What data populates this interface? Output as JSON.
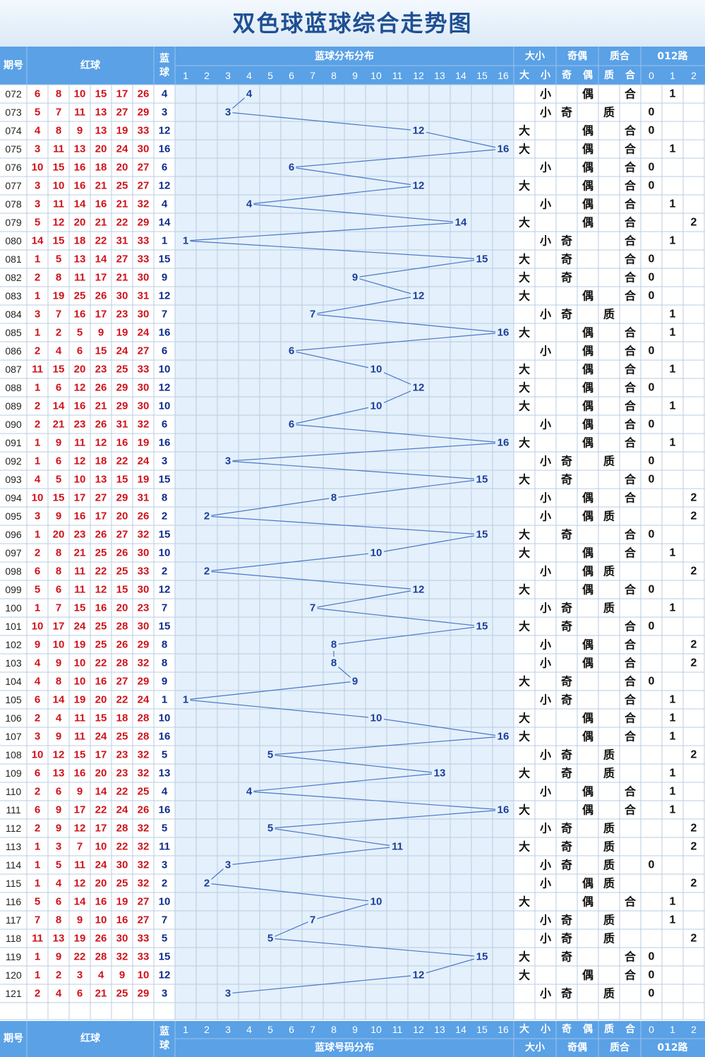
{
  "title": "双色球蓝球综合走势图",
  "headers": {
    "period": "期号",
    "red": "红球",
    "blue": "蓝球",
    "dist_top": "蓝球分布分布",
    "dist_bottom": "蓝球号码分布",
    "bigsmall": "大小",
    "oddeven": "奇偶",
    "primecomp": "质合",
    "route": "012路",
    "numbers": [
      "1",
      "2",
      "3",
      "4",
      "5",
      "6",
      "7",
      "8",
      "9",
      "10",
      "11",
      "12",
      "13",
      "14",
      "15",
      "16"
    ],
    "sub": [
      "大",
      "小",
      "奇",
      "偶",
      "质",
      "合",
      "0",
      "1",
      "2"
    ]
  },
  "colors": {
    "header": "#5aa1e6",
    "red_ball": "#d0121b",
    "blue_ball": "#0d2c8c",
    "trend_line": "#4a78c8",
    "grid": "#b8cde3"
  },
  "chart_data": {
    "type": "line",
    "title": "双色球蓝球综合走势图",
    "x": [
      "072",
      "073",
      "074",
      "075",
      "076",
      "077",
      "078",
      "079",
      "080",
      "081",
      "082",
      "083",
      "084",
      "085",
      "086",
      "087",
      "088",
      "089",
      "090",
      "091",
      "092",
      "093",
      "094",
      "095",
      "096",
      "097",
      "098",
      "099",
      "100",
      "101",
      "102",
      "103",
      "104",
      "105",
      "106",
      "107",
      "108",
      "109",
      "110",
      "111",
      "112",
      "113",
      "114",
      "115",
      "116",
      "117",
      "118",
      "119",
      "120",
      "121"
    ],
    "ylim": [
      1,
      16
    ],
    "series": [
      {
        "name": "蓝球",
        "values": [
          4,
          3,
          12,
          16,
          6,
          12,
          4,
          14,
          1,
          15,
          9,
          12,
          7,
          16,
          6,
          10,
          12,
          10,
          6,
          16,
          3,
          15,
          8,
          2,
          15,
          10,
          2,
          12,
          7,
          15,
          8,
          8,
          9,
          1,
          10,
          16,
          5,
          13,
          4,
          16,
          5,
          11,
          3,
          2,
          10,
          7,
          5,
          15,
          12,
          3
        ]
      }
    ],
    "red_balls": [
      [
        6,
        8,
        10,
        15,
        17,
        26
      ],
      [
        5,
        7,
        11,
        13,
        27,
        29
      ],
      [
        4,
        8,
        9,
        13,
        19,
        33
      ],
      [
        3,
        11,
        13,
        20,
        24,
        30
      ],
      [
        10,
        15,
        16,
        18,
        20,
        27
      ],
      [
        3,
        10,
        16,
        21,
        25,
        27
      ],
      [
        3,
        11,
        14,
        16,
        21,
        32
      ],
      [
        5,
        12,
        20,
        21,
        22,
        29
      ],
      [
        14,
        15,
        18,
        22,
        31,
        33
      ],
      [
        1,
        5,
        13,
        14,
        27,
        33
      ],
      [
        2,
        8,
        11,
        17,
        21,
        30
      ],
      [
        1,
        19,
        25,
        26,
        30,
        31
      ],
      [
        3,
        7,
        16,
        17,
        23,
        30
      ],
      [
        1,
        2,
        5,
        9,
        19,
        24
      ],
      [
        2,
        4,
        6,
        15,
        24,
        27
      ],
      [
        11,
        15,
        20,
        23,
        25,
        33
      ],
      [
        1,
        6,
        12,
        26,
        29,
        30
      ],
      [
        2,
        14,
        16,
        21,
        29,
        30
      ],
      [
        2,
        21,
        23,
        26,
        31,
        32
      ],
      [
        1,
        9,
        11,
        12,
        16,
        19
      ],
      [
        1,
        6,
        12,
        18,
        22,
        24
      ],
      [
        4,
        5,
        10,
        13,
        15,
        19
      ],
      [
        10,
        15,
        17,
        27,
        29,
        31
      ],
      [
        3,
        9,
        16,
        17,
        20,
        26
      ],
      [
        1,
        20,
        23,
        26,
        27,
        32
      ],
      [
        2,
        8,
        21,
        25,
        26,
        30
      ],
      [
        6,
        8,
        11,
        22,
        25,
        33
      ],
      [
        5,
        6,
        11,
        12,
        15,
        30
      ],
      [
        1,
        7,
        15,
        16,
        20,
        23
      ],
      [
        10,
        17,
        24,
        25,
        28,
        30
      ],
      [
        9,
        10,
        19,
        25,
        26,
        29
      ],
      [
        4,
        9,
        10,
        22,
        28,
        32
      ],
      [
        4,
        8,
        10,
        16,
        27,
        29
      ],
      [
        6,
        14,
        19,
        20,
        22,
        24
      ],
      [
        2,
        4,
        11,
        15,
        18,
        28
      ],
      [
        3,
        9,
        11,
        24,
        25,
        28
      ],
      [
        10,
        12,
        15,
        17,
        23,
        32
      ],
      [
        6,
        13,
        16,
        20,
        23,
        32
      ],
      [
        2,
        6,
        9,
        14,
        22,
        25
      ],
      [
        6,
        9,
        17,
        22,
        24,
        26
      ],
      [
        2,
        9,
        12,
        17,
        28,
        32
      ],
      [
        1,
        3,
        7,
        10,
        22,
        32
      ],
      [
        1,
        5,
        11,
        24,
        30,
        32
      ],
      [
        1,
        4,
        12,
        20,
        25,
        32
      ],
      [
        5,
        6,
        14,
        16,
        19,
        27
      ],
      [
        7,
        8,
        9,
        10,
        16,
        27
      ],
      [
        11,
        13,
        19,
        26,
        30,
        33
      ],
      [
        1,
        9,
        22,
        28,
        32,
        33
      ],
      [
        1,
        2,
        3,
        4,
        9,
        10
      ],
      [
        2,
        4,
        6,
        21,
        25,
        29
      ]
    ],
    "attributes": {
      "bigsmall": [
        "小",
        "小",
        "大",
        "大",
        "小",
        "大",
        "小",
        "大",
        "小",
        "大",
        "大",
        "大",
        "小",
        "大",
        "小",
        "大",
        "大",
        "大",
        "小",
        "大",
        "小",
        "大",
        "小",
        "小",
        "大",
        "大",
        "小",
        "大",
        "小",
        "大",
        "小",
        "小",
        "大",
        "小",
        "大",
        "大",
        "小",
        "大",
        "小",
        "大",
        "小",
        "大",
        "小",
        "小",
        "大",
        "小",
        "小",
        "大",
        "大",
        "小"
      ],
      "oddeven": [
        "偶",
        "奇",
        "偶",
        "偶",
        "偶",
        "偶",
        "偶",
        "偶",
        "奇",
        "奇",
        "奇",
        "偶",
        "奇",
        "偶",
        "偶",
        "偶",
        "偶",
        "偶",
        "偶",
        "偶",
        "奇",
        "奇",
        "偶",
        "偶",
        "奇",
        "偶",
        "偶",
        "偶",
        "奇",
        "奇",
        "偶",
        "偶",
        "奇",
        "奇",
        "偶",
        "偶",
        "奇",
        "奇",
        "偶",
        "偶",
        "奇",
        "奇",
        "奇",
        "偶",
        "偶",
        "奇",
        "奇",
        "奇",
        "偶",
        "奇"
      ],
      "primecomp": [
        "合",
        "质",
        "合",
        "合",
        "合",
        "合",
        "合",
        "合",
        "合",
        "合",
        "合",
        "合",
        "质",
        "合",
        "合",
        "合",
        "合",
        "合",
        "合",
        "合",
        "质",
        "合",
        "合",
        "质",
        "合",
        "合",
        "质",
        "合",
        "质",
        "合",
        "合",
        "合",
        "合",
        "合",
        "合",
        "合",
        "质",
        "质",
        "合",
        "合",
        "质",
        "质",
        "质",
        "质",
        "合",
        "质",
        "质",
        "合",
        "合",
        "质"
      ],
      "route": [
        1,
        0,
        0,
        1,
        0,
        0,
        1,
        2,
        1,
        0,
        0,
        0,
        1,
        1,
        0,
        1,
        0,
        1,
        0,
        1,
        0,
        0,
        2,
        2,
        0,
        1,
        2,
        0,
        1,
        0,
        2,
        2,
        0,
        1,
        1,
        1,
        2,
        1,
        1,
        1,
        2,
        2,
        0,
        2,
        1,
        1,
        2,
        0,
        0,
        0
      ]
    }
  }
}
